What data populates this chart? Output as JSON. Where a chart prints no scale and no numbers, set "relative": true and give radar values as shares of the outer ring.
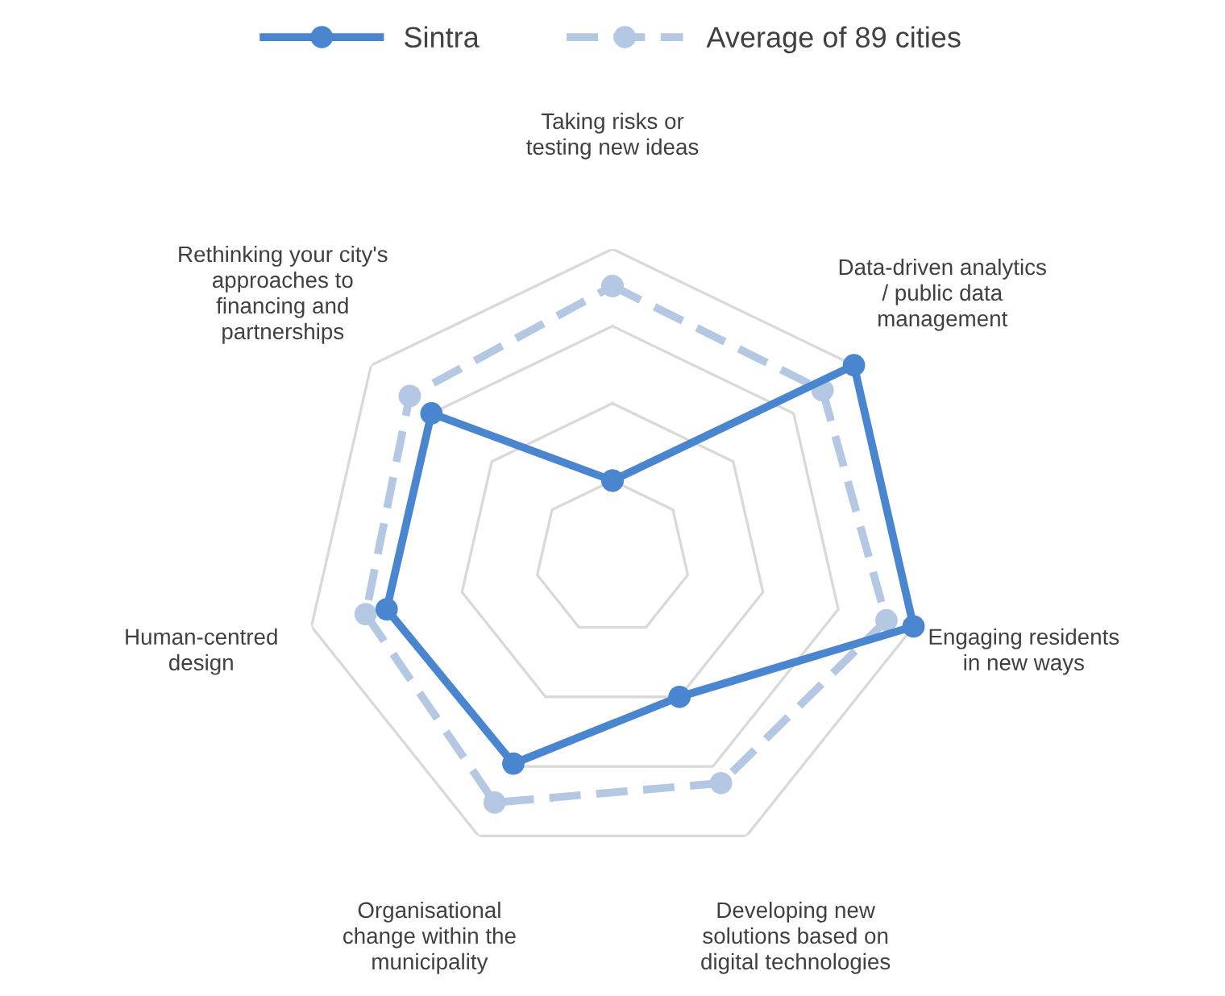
{
  "chart_data": {
    "type": "radar",
    "relative": true,
    "grid": true,
    "legend": "top",
    "marker": "circle",
    "categories": [
      "Taking risks or\ntesting new ideas",
      "Data-driven analytics\n/ public data\nmanagement",
      "Engaging residents\nin new ways",
      "Developing new\nsolutions based on\ndigital technologies",
      "Organisational\nchange within the\nmunicipality",
      "Human-centred\ndesign",
      "Rethinking your city's\napproaches to\nfinancing and\npartnerships"
    ],
    "series": [
      {
        "name": "Sintra",
        "color": "#4a86d0",
        "line_style": "solid",
        "values": [
          0.25,
          1.0,
          1.0,
          0.5,
          0.74,
          0.75,
          0.75
        ]
      },
      {
        "name": "Average of 89 cities",
        "color": "#b4c8e4",
        "line_style": "dashed",
        "values": [
          0.88,
          0.87,
          0.91,
          0.81,
          0.88,
          0.82,
          0.84
        ]
      }
    ]
  }
}
